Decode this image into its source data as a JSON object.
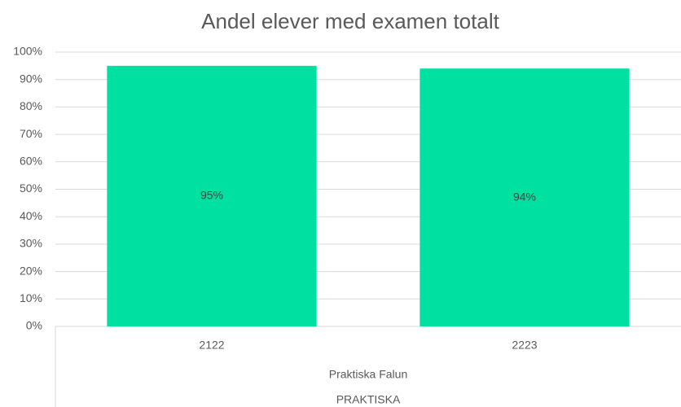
{
  "chart_data": {
    "type": "bar",
    "title": "Andel elever med examen totalt",
    "categories": [
      "2122",
      "2223"
    ],
    "values": [
      95,
      94
    ],
    "value_labels": [
      "95%",
      "94%"
    ],
    "color": "#00e0a0",
    "category_group_labels": [
      "Praktiska Falun",
      "PRAKTISKA"
    ],
    "ylim": [
      0,
      100
    ],
    "yticks": [
      {
        "value": 0,
        "label": "0%"
      },
      {
        "value": 10,
        "label": "10%"
      },
      {
        "value": 20,
        "label": "20%"
      },
      {
        "value": 30,
        "label": "30%"
      },
      {
        "value": 40,
        "label": "40%"
      },
      {
        "value": 50,
        "label": "50%"
      },
      {
        "value": 60,
        "label": "60%"
      },
      {
        "value": 70,
        "label": "70%"
      },
      {
        "value": 80,
        "label": "80%"
      },
      {
        "value": 90,
        "label": "90%"
      },
      {
        "value": 100,
        "label": "100%"
      }
    ],
    "grid": true
  }
}
